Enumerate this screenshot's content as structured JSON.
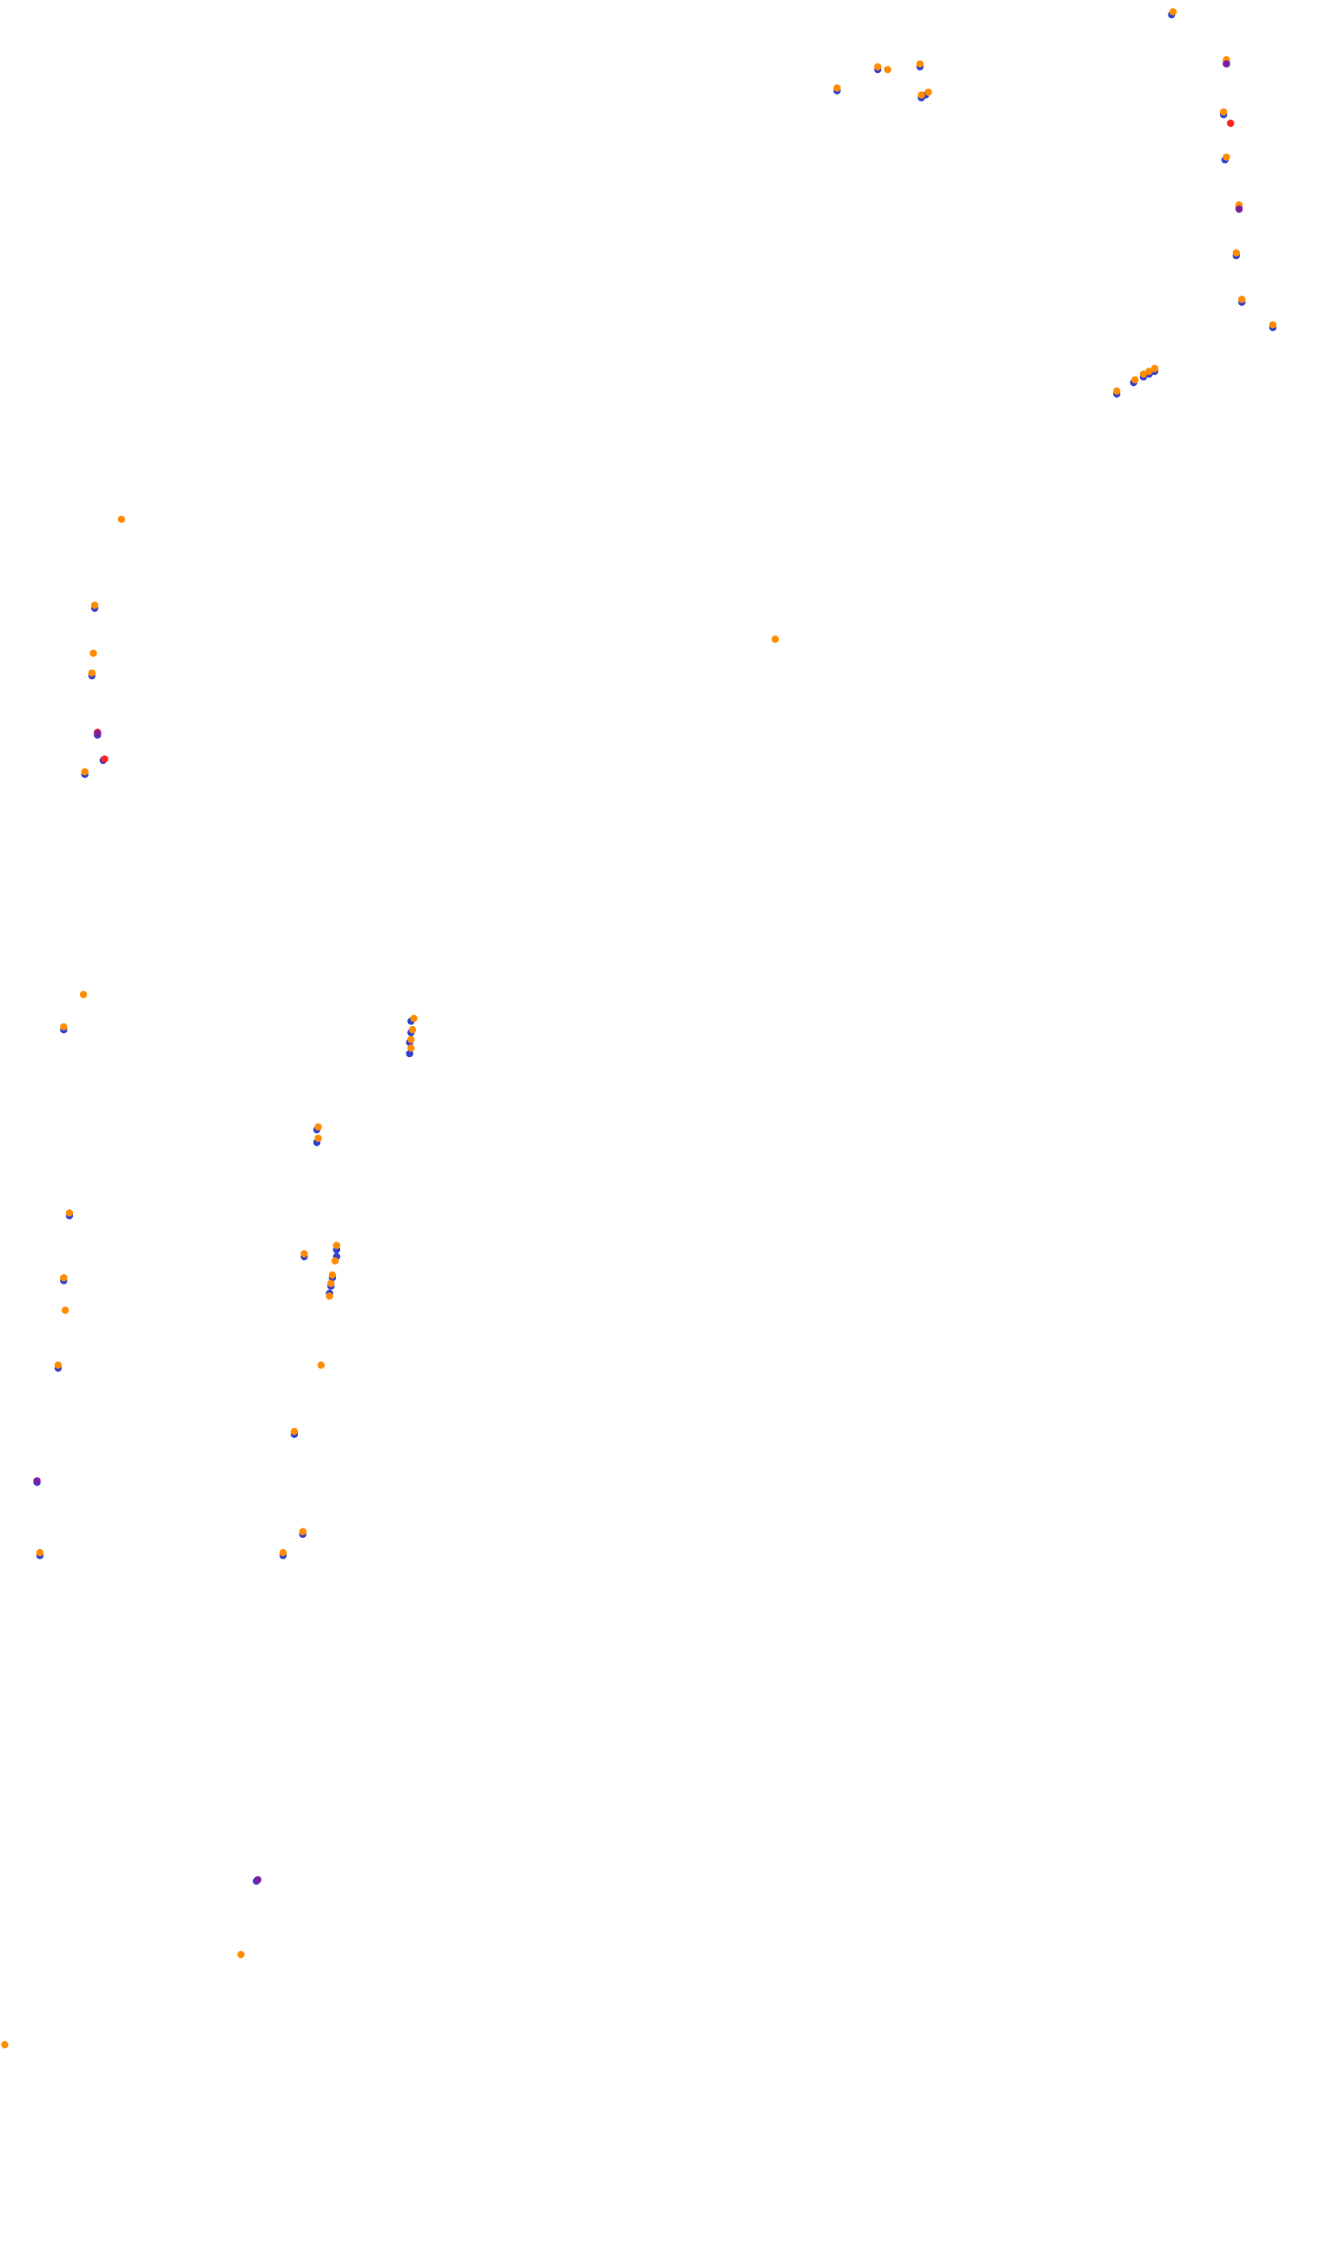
{
  "chart_data": {
    "type": "scatter",
    "title": "",
    "xlabel": "",
    "ylabel": "",
    "xlim": [
      0,
      940
    ],
    "ylim": [
      1585,
      0
    ],
    "grid": false,
    "legend": "none",
    "colors": {
      "orange": "#ff8c00",
      "blue": "#2f3fd0",
      "red": "#ff2020",
      "purple": "#7a1fa0"
    },
    "series": [
      {
        "color_key": "blue",
        "points": [
          [
            830,
            7
          ],
          [
            592,
            61
          ],
          [
            621,
            46
          ],
          [
            651,
            44
          ],
          [
            652,
            66
          ],
          [
            655,
            64
          ],
          [
            869,
            41
          ],
          [
            867,
            78
          ],
          [
            868,
            110
          ],
          [
            878,
            144
          ],
          [
            876,
            178
          ],
          [
            880,
            211
          ],
          [
            902,
            229
          ],
          [
            791,
            276
          ],
          [
            803,
            268
          ],
          [
            810,
            264
          ],
          [
            814,
            262
          ],
          [
            818,
            260
          ],
          [
            64,
            428
          ],
          [
            62,
            476
          ],
          [
            66,
            518
          ],
          [
            70,
            536
          ],
          [
            57,
            546
          ],
          [
            42,
            727
          ],
          [
            289,
            721
          ],
          [
            289,
            729
          ],
          [
            288,
            736
          ],
          [
            288,
            744
          ],
          [
            222,
            798
          ],
          [
            222,
            807
          ],
          [
            46,
            859
          ],
          [
            236,
            883
          ],
          [
            236,
            888
          ],
          [
            233,
            903
          ],
          [
            232,
            909
          ],
          [
            231,
            914
          ],
          [
            213,
            888
          ],
          [
            42,
            905
          ],
          [
            38,
            967
          ],
          [
            206,
            1014
          ],
          [
            23,
            1048
          ],
          [
            25,
            1100
          ],
          [
            212,
            1085
          ],
          [
            198,
            1100
          ],
          [
            179,
            1331
          ]
        ]
      },
      {
        "color_key": "orange",
        "points": [
          [
            831,
            5
          ],
          [
            592,
            59
          ],
          [
            621,
            44
          ],
          [
            628,
            46
          ],
          [
            651,
            42
          ],
          [
            652,
            64
          ],
          [
            657,
            62
          ],
          [
            869,
            39
          ],
          [
            867,
            76
          ],
          [
            869,
            108
          ],
          [
            878,
            142
          ],
          [
            876,
            176
          ],
          [
            880,
            209
          ],
          [
            902,
            227
          ],
          [
            791,
            274
          ],
          [
            804,
            266
          ],
          [
            810,
            262
          ],
          [
            814,
            260
          ],
          [
            818,
            258
          ],
          [
            83,
            365
          ],
          [
            548,
            450
          ],
          [
            64,
            426
          ],
          [
            63,
            460
          ],
          [
            62,
            474
          ],
          [
            57,
            544
          ],
          [
            56,
            702
          ],
          [
            42,
            725
          ],
          [
            291,
            719
          ],
          [
            290,
            727
          ],
          [
            289,
            734
          ],
          [
            289,
            740
          ],
          [
            223,
            796
          ],
          [
            223,
            804
          ],
          [
            46,
            857
          ],
          [
            236,
            880
          ],
          [
            235,
            891
          ],
          [
            233,
            901
          ],
          [
            232,
            907
          ],
          [
            231,
            916
          ],
          [
            213,
            886
          ],
          [
            42,
            903
          ],
          [
            43,
            926
          ],
          [
            38,
            965
          ],
          [
            225,
            965
          ],
          [
            206,
            1012
          ],
          [
            25,
            1098
          ],
          [
            212,
            1083
          ],
          [
            198,
            1098
          ],
          [
            168,
            1383
          ],
          [
            0,
            1447
          ]
        ]
      },
      {
        "color_key": "red",
        "points": [
          [
            872,
            84
          ],
          [
            66,
            516
          ],
          [
            71,
            535
          ]
        ]
      },
      {
        "color_key": "purple",
        "points": [
          [
            869,
            42
          ],
          [
            878,
            145
          ],
          [
            66,
            517
          ],
          [
            23,
            1047
          ],
          [
            180,
            1330
          ]
        ]
      }
    ]
  }
}
